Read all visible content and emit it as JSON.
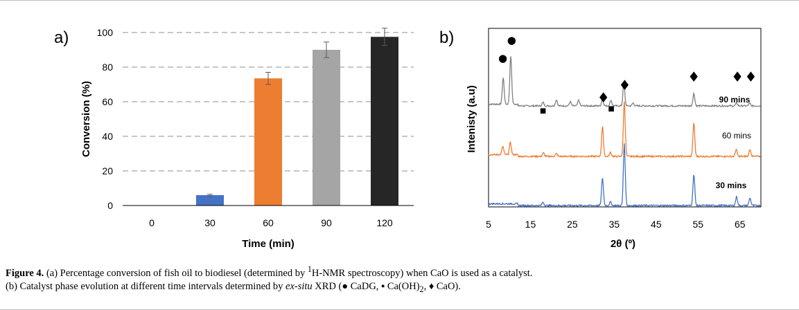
{
  "chart_data": [
    {
      "panel_label": "a)",
      "type": "bar",
      "categories": [
        "0",
        "30",
        "60",
        "90",
        "120"
      ],
      "values": [
        0,
        6,
        73.5,
        90,
        97.5
      ],
      "errors": [
        0,
        0.5,
        3.5,
        4.5,
        5
      ],
      "colors": [
        "#4472c4",
        "#4472c4",
        "#ed7d31",
        "#a5a5a5",
        "#262626"
      ],
      "xlabel": "Time (min)",
      "ylabel": "Conversion (%)",
      "ylim": [
        0,
        100
      ],
      "yticks": [
        "0",
        "20",
        "40",
        "60",
        "80",
        "100"
      ],
      "grid": "horizontal dashed"
    },
    {
      "panel_label": "b)",
      "type": "line",
      "xlabel": "2θ (º)",
      "ylabel": "Intenisty (a.u)",
      "xlim": [
        5,
        70
      ],
      "xticks": [
        "5",
        "15",
        "25",
        "35",
        "45",
        "55",
        "65"
      ],
      "series": [
        {
          "name": "90 mins",
          "color": "#808080",
          "peaks": [
            [
              8.5,
              38
            ],
            [
              10.3,
              70
            ],
            [
              18,
              5
            ],
            [
              21.2,
              9
            ],
            [
              24.5,
              6
            ],
            [
              26.5,
              8
            ],
            [
              32.2,
              10
            ],
            [
              34.2,
              8
            ],
            [
              37.3,
              34
            ],
            [
              39.5,
              4
            ],
            [
              54,
              18
            ],
            [
              64.2,
              4
            ],
            [
              67.3,
              4
            ]
          ]
        },
        {
          "name": "60 mins",
          "color": "#ed7d31",
          "peaks": [
            [
              8.4,
              12
            ],
            [
              10.2,
              18
            ],
            [
              18.1,
              5
            ],
            [
              21.2,
              4
            ],
            [
              32.2,
              43
            ],
            [
              34.1,
              6
            ],
            [
              37.4,
              80
            ],
            [
              54,
              48
            ],
            [
              64.1,
              10
            ],
            [
              67.4,
              10
            ]
          ]
        },
        {
          "name": "30 mins",
          "color": "#4472c4",
          "peaks": [
            [
              18,
              5
            ],
            [
              32.2,
              40
            ],
            [
              34.1,
              5
            ],
            [
              37.4,
              90
            ],
            [
              54,
              45
            ],
            [
              64.2,
              13
            ],
            [
              67.4,
              11
            ]
          ]
        }
      ],
      "markers": [
        {
          "symbol": "●",
          "x": 8.4,
          "label": "CaDG"
        },
        {
          "symbol": "●",
          "x": 10.5,
          "label": "CaDG"
        },
        {
          "symbol": "■",
          "x": 18,
          "label": "Ca(OH)2"
        },
        {
          "symbol": "♦",
          "x": 32.4,
          "label": "CaO"
        },
        {
          "symbol": "■",
          "x": 34.3,
          "label": "Ca(OH)2"
        },
        {
          "symbol": "♦",
          "x": 37.5,
          "label": "CaO"
        },
        {
          "symbol": "♦",
          "x": 54,
          "label": "CaO"
        },
        {
          "symbol": "♦",
          "x": 64.4,
          "label": "CaO"
        },
        {
          "symbol": "♦",
          "x": 67.6,
          "label": "CaO"
        }
      ]
    }
  ],
  "caption": {
    "figure_label": "Figure 4.",
    "part_a_1": " (a) Percentage conversion of fish oil to biodiesel (determined by ",
    "nmr_sup": "1",
    "part_a_2": "H-NMR spectroscopy) when CaO is used as a catalyst.",
    "part_b_1": "(b) Catalyst phase evolution at different time intervals determined by ",
    "ex_situ": "ex-situ",
    "part_b_2": " XRD (● CaDG, ▪ Ca(OH)",
    "sub_2a": "2",
    "part_b_3": ", ♦ CaO)."
  }
}
